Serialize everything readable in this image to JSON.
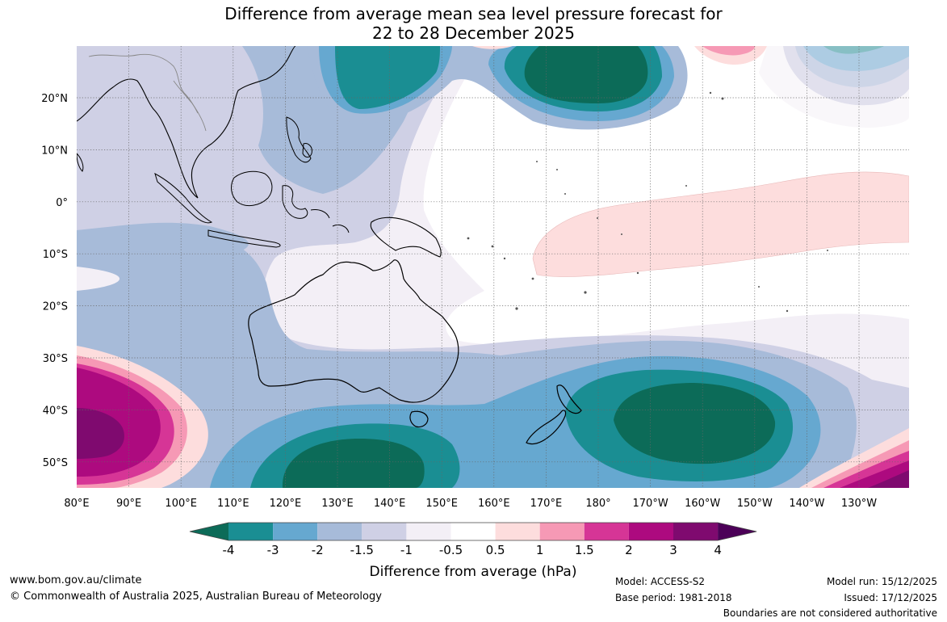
{
  "title": {
    "line1": "Difference from average mean sea level pressure forecast for",
    "line2": "22 to 28 December 2025"
  },
  "map": {
    "lat_labels": [
      "20°N",
      "10°N",
      "0°",
      "10°S",
      "20°S",
      "30°S",
      "40°S",
      "50°S"
    ],
    "lon_labels": [
      "80°E",
      "90°E",
      "100°E",
      "110°E",
      "120°E",
      "130°E",
      "140°E",
      "150°E",
      "160°E",
      "170°E",
      "180°",
      "170°W",
      "160°W",
      "150°W",
      "140°W",
      "130°W"
    ],
    "extent": {
      "lon": [
        "80°E",
        "120°W"
      ],
      "lat": [
        "30°N",
        "55°S"
      ]
    }
  },
  "colorbar": {
    "ticks": [
      "-4",
      "-3",
      "-2",
      "-1.5",
      "-1",
      "-0.5",
      "0.5",
      "1",
      "1.5",
      "2",
      "3",
      "4"
    ],
    "colors": [
      "#0c6b58",
      "#1a8e93",
      "#66a8d0",
      "#a7bbd9",
      "#cfd0e5",
      "#f3eff6",
      "#ffffff",
      "#fddddd",
      "#f699b5",
      "#d63596",
      "#ad0a7f",
      "#7f0a6f",
      "#4c0058"
    ],
    "label": "Difference from average (hPa)"
  },
  "footer": {
    "website": "www.bom.gov.au/climate",
    "copyright": "© Commonwealth of Australia 2025, Australian Bureau of Meteorology",
    "model": "Model: ACCESS-S2",
    "base_period": "Base period: 1981-2018",
    "model_run": "Model run: 15/12/2025",
    "issued": "Issued: 17/12/2025",
    "boundaries": "Boundaries are not considered authoritative"
  }
}
